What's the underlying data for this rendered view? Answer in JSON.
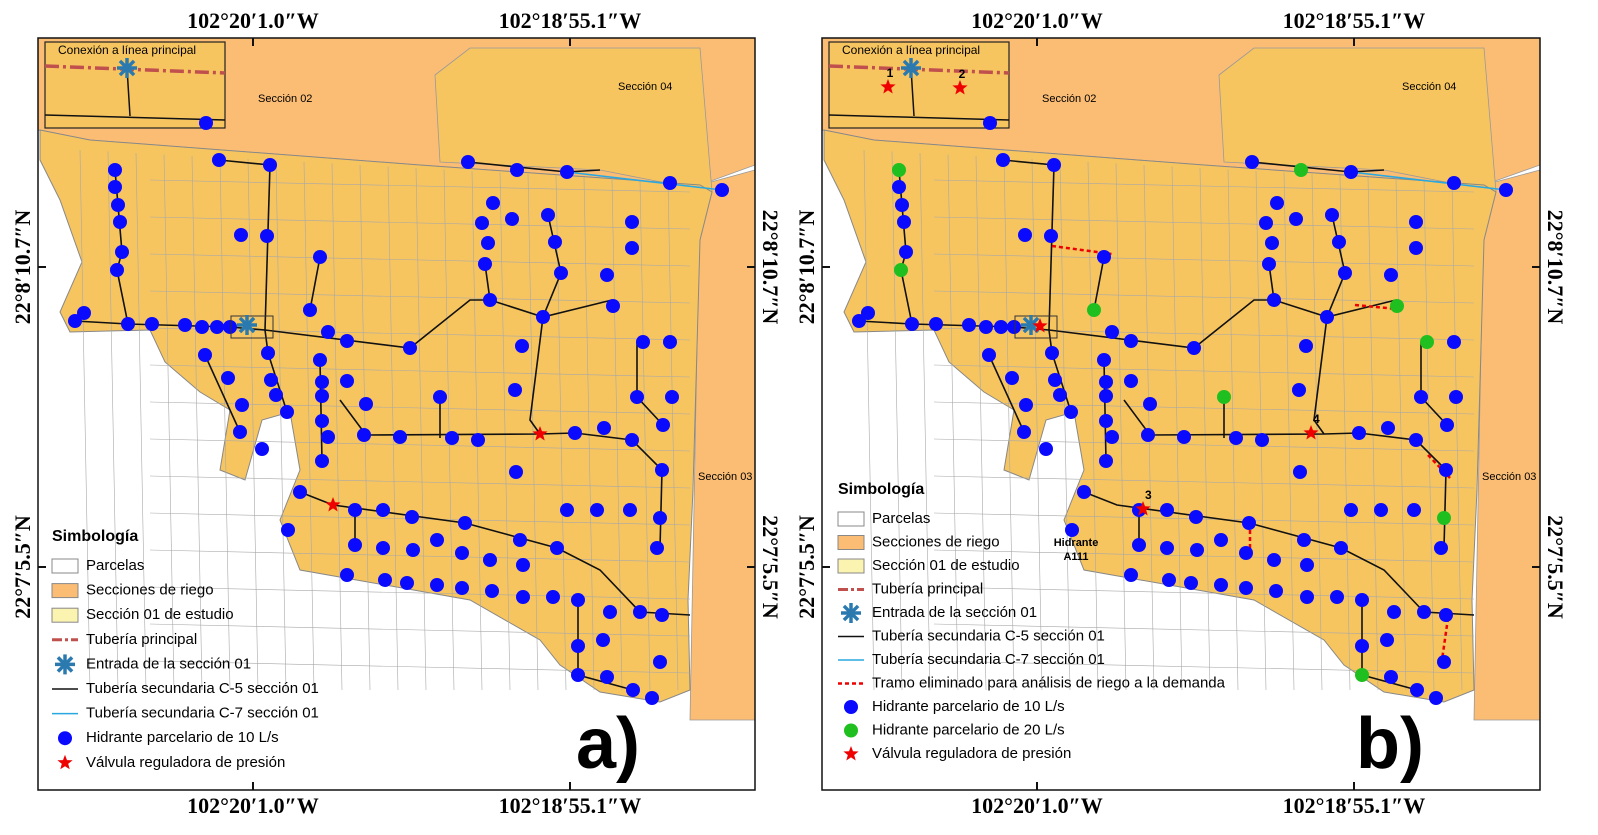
{
  "panels": [
    {
      "label": "a)",
      "coords": {
        "top": [
          "102°20′1.0″W",
          "102°18′55.1″W"
        ],
        "bottom": [
          "102°20′1.0″W",
          "102°18′55.1″W"
        ],
        "left": [
          "22°8′10.7″N",
          "22°7′5.5″N"
        ],
        "right": [
          "22°8′10.7″N",
          "22°7′5.5″N"
        ]
      },
      "inset_title": "Conexión a línea principal",
      "sections": [
        "Sección 02",
        "Sección 04",
        "Sección 03"
      ],
      "legend": {
        "title": "Simbología",
        "items": [
          "Parcelas",
          "Secciones de riego",
          "Sección 01 de estudio",
          "Tubería principal",
          "Entrada de la sección 01",
          "Tubería secundaria C-5 sección 01",
          "Tubería secundaria C-7 sección 01",
          "Hidrante parcelario de 10 L/s",
          "Válvula reguladora de presión"
        ]
      }
    },
    {
      "label": "b)",
      "coords": {
        "top": [
          "102°20′1.0″W",
          "102°18′55.1″W"
        ],
        "bottom": [
          "102°20′1.0″W",
          "102°18′55.1″W"
        ],
        "left": [
          "22°8′10.7″N",
          "22°7′5.5″N"
        ],
        "right": [
          "22°8′10.7″N",
          "22°7′5.5″N"
        ]
      },
      "inset_title": "Conexión a línea principal",
      "sections": [
        "Sección 02",
        "Sección 04",
        "Sección 03"
      ],
      "valve_numbers": [
        "1",
        "2",
        "3",
        "4"
      ],
      "hydrant_label": [
        "Hidrante",
        "A111"
      ],
      "legend": {
        "title": "Simbología",
        "items": [
          "Parcelas",
          "Secciones de riego",
          "Sección 01 de estudio",
          "Tubería principal",
          "Entrada de la sección 01",
          "Tubería secundaria C-5 sección 01",
          "Tubería secundaria C-7 sección 01",
          "Tramo eliminado para análisis de riego a la demanda",
          "Hidrante parcelario de 10 L/s",
          "Hidrante parcelario de 20 L/s",
          "Válvula reguladora de presión"
        ]
      }
    }
  ]
}
